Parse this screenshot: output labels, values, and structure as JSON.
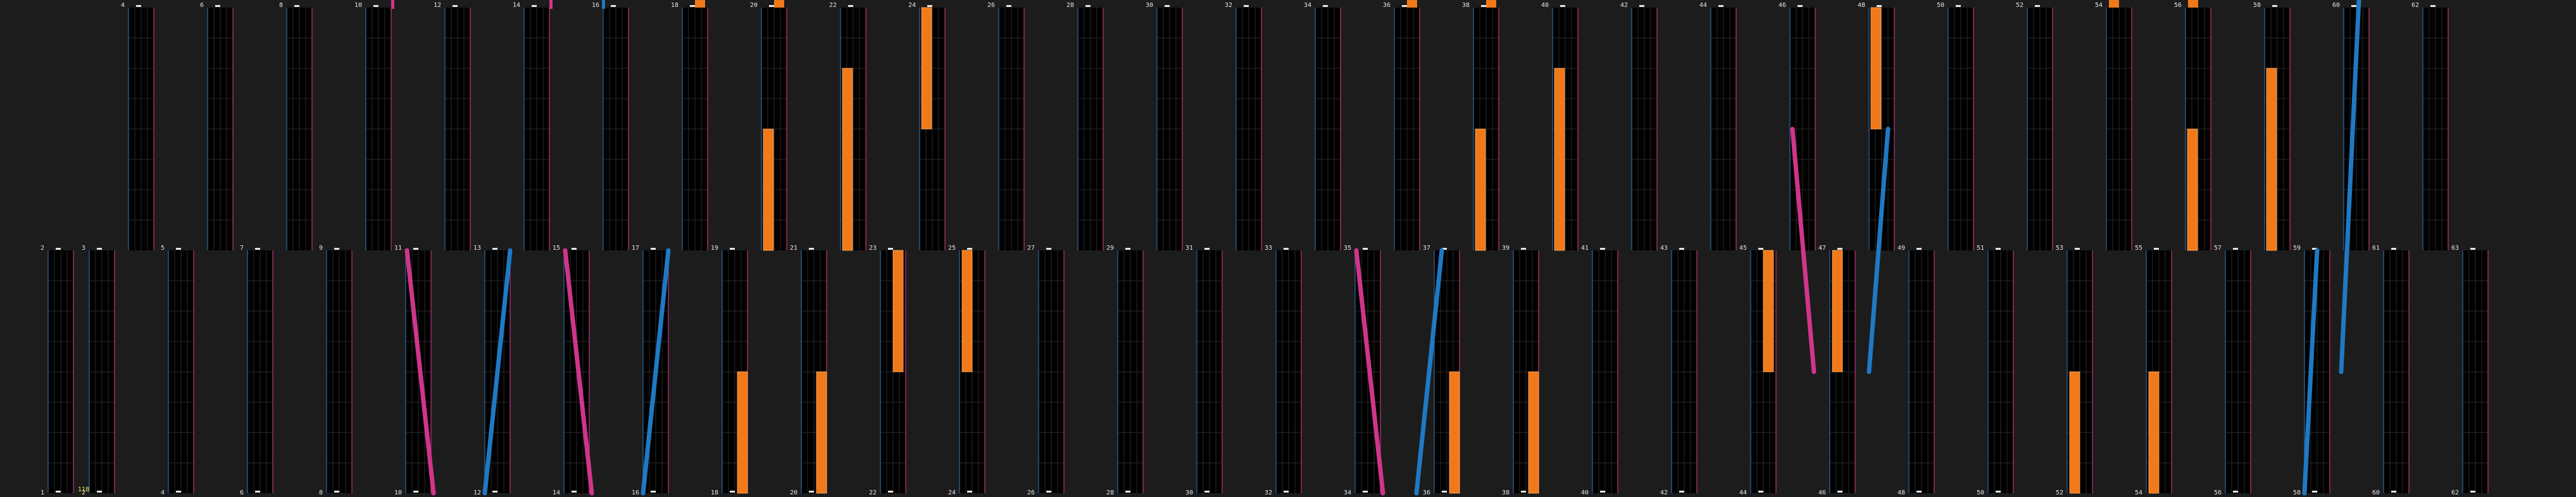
{
  "timeline": {
    "top_row_labels": [
      "4",
      "6",
      "8",
      "10",
      "12",
      "14",
      "16",
      "18",
      "20",
      "22",
      "24",
      "26",
      "28",
      "30",
      "32",
      "34",
      "36",
      "38",
      "40",
      "42",
      "44",
      "46",
      "48",
      "50",
      "52",
      "54",
      "56",
      "58",
      "60",
      "62"
    ],
    "mid_row_labels": [
      "2",
      "3",
      "5",
      "7",
      "9",
      "11",
      "13",
      "15",
      "17",
      "19",
      "21",
      "23",
      "25",
      "27",
      "29",
      "31",
      "33",
      "35",
      "37",
      "39",
      "41",
      "43",
      "45",
      "47",
      "49",
      "51",
      "53",
      "55",
      "57",
      "59",
      "61",
      "63"
    ],
    "bottom_row_labels": [
      "1",
      "2",
      "4",
      "6",
      "8",
      "10",
      "12",
      "14",
      "16",
      "18",
      "20",
      "22",
      "24",
      "26",
      "28",
      "30",
      "32",
      "34",
      "36",
      "38",
      "40",
      "42",
      "44",
      "46",
      "48",
      "50",
      "52",
      "54",
      "56",
      "58",
      "60",
      "62"
    ],
    "time_readout": "118"
  },
  "colors": {
    "background": "#1c1c1c",
    "panel": "#000000",
    "left_edge": "#2a5d8c",
    "right_edge": "#a8306e",
    "bar_orange": "#f07a19",
    "line_blue": "#1f79c4",
    "line_pink": "#d0358a",
    "readout": "#f2e84a"
  }
}
